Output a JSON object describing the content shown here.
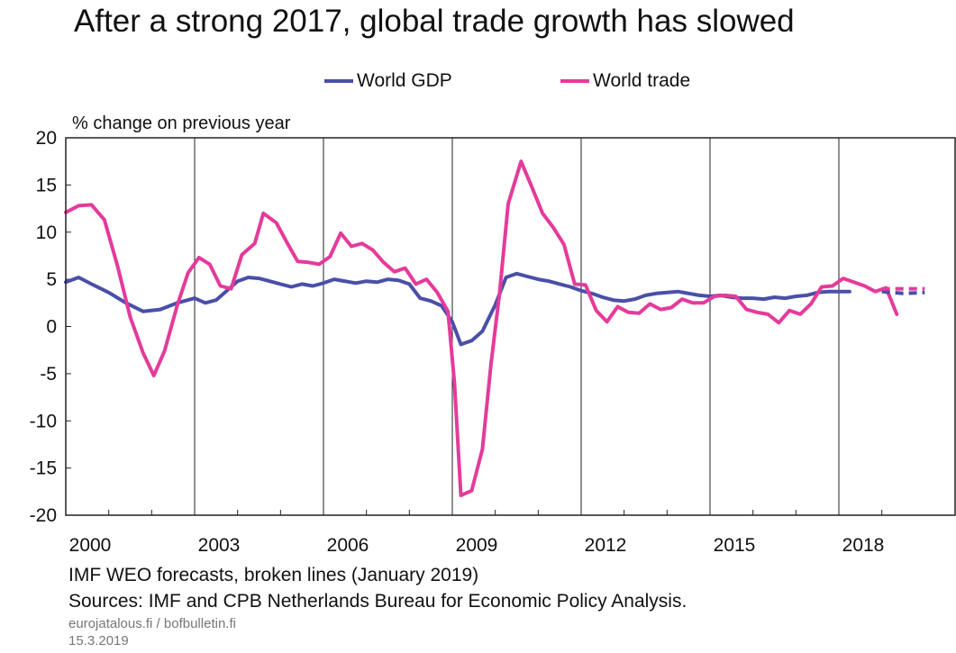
{
  "chart_data": {
    "type": "line",
    "title": "After a strong 2017, global trade growth has slowed",
    "ylabel": "% change on previous year",
    "xlabel": "",
    "xlim": [
      2000,
      2020
    ],
    "ylim": [
      -20,
      20
    ],
    "yticks": [
      20,
      15,
      10,
      5,
      0,
      -5,
      -10,
      -15,
      -20
    ],
    "xticks": [
      2000,
      2003,
      2006,
      2009,
      2012,
      2015,
      2018
    ],
    "grid": "vertical lines at labelled years",
    "legend_position": "top-center",
    "series": [
      {
        "name": "World GDP",
        "color": "#4a4fa8",
        "style": "solid",
        "points": [
          [
            2000.0,
            4.7
          ],
          [
            2000.3,
            5.2
          ],
          [
            2000.6,
            4.5
          ],
          [
            2001.0,
            3.6
          ],
          [
            2001.4,
            2.5
          ],
          [
            2001.8,
            1.6
          ],
          [
            2002.2,
            1.8
          ],
          [
            2002.6,
            2.5
          ],
          [
            2003.0,
            3.0
          ],
          [
            2003.25,
            2.5
          ],
          [
            2003.5,
            2.8
          ],
          [
            2003.75,
            3.8
          ],
          [
            2004.0,
            4.8
          ],
          [
            2004.25,
            5.2
          ],
          [
            2004.5,
            5.1
          ],
          [
            2004.75,
            4.8
          ],
          [
            2005.0,
            4.5
          ],
          [
            2005.25,
            4.2
          ],
          [
            2005.5,
            4.5
          ],
          [
            2005.75,
            4.3
          ],
          [
            2006.0,
            4.6
          ],
          [
            2006.25,
            5.0
          ],
          [
            2006.5,
            4.8
          ],
          [
            2006.75,
            4.6
          ],
          [
            2007.0,
            4.8
          ],
          [
            2007.25,
            4.7
          ],
          [
            2007.5,
            5.0
          ],
          [
            2007.75,
            4.9
          ],
          [
            2008.0,
            4.5
          ],
          [
            2008.25,
            3.0
          ],
          [
            2008.5,
            2.7
          ],
          [
            2008.75,
            2.2
          ],
          [
            2009.0,
            0.5
          ],
          [
            2009.2,
            -1.9
          ],
          [
            2009.45,
            -1.5
          ],
          [
            2009.7,
            -0.5
          ],
          [
            2010.0,
            2.3
          ],
          [
            2010.25,
            5.2
          ],
          [
            2010.5,
            5.6
          ],
          [
            2010.75,
            5.3
          ],
          [
            2011.0,
            5.0
          ],
          [
            2011.25,
            4.8
          ],
          [
            2011.5,
            4.5
          ],
          [
            2011.75,
            4.2
          ],
          [
            2012.0,
            3.8
          ],
          [
            2012.25,
            3.5
          ],
          [
            2012.5,
            3.1
          ],
          [
            2012.75,
            2.8
          ],
          [
            2013.0,
            2.7
          ],
          [
            2013.25,
            2.9
          ],
          [
            2013.5,
            3.3
          ],
          [
            2013.75,
            3.5
          ],
          [
            2014.0,
            3.6
          ],
          [
            2014.25,
            3.7
          ],
          [
            2014.5,
            3.5
          ],
          [
            2014.75,
            3.3
          ],
          [
            2015.0,
            3.2
          ],
          [
            2015.25,
            3.3
          ],
          [
            2015.5,
            3.1
          ],
          [
            2015.75,
            3.0
          ],
          [
            2016.0,
            3.0
          ],
          [
            2016.25,
            2.9
          ],
          [
            2016.5,
            3.1
          ],
          [
            2016.75,
            3.0
          ],
          [
            2017.0,
            3.2
          ],
          [
            2017.25,
            3.3
          ],
          [
            2017.5,
            3.6
          ],
          [
            2017.75,
            3.7
          ],
          [
            2018.0,
            3.7
          ],
          [
            2018.25,
            3.7
          ]
        ]
      },
      {
        "name": "World trade",
        "color": "#e43b9b",
        "style": "solid",
        "points": [
          [
            2000.0,
            12.1
          ],
          [
            2000.3,
            12.8
          ],
          [
            2000.6,
            12.9
          ],
          [
            2000.9,
            11.3
          ],
          [
            2001.2,
            6.5
          ],
          [
            2001.5,
            1.0
          ],
          [
            2001.8,
            -2.8
          ],
          [
            2002.05,
            -5.2
          ],
          [
            2002.3,
            -2.6
          ],
          [
            2002.6,
            2.3
          ],
          [
            2002.85,
            5.7
          ],
          [
            2003.1,
            7.3
          ],
          [
            2003.35,
            6.6
          ],
          [
            2003.6,
            4.3
          ],
          [
            2003.85,
            4.0
          ],
          [
            2004.1,
            7.6
          ],
          [
            2004.4,
            8.8
          ],
          [
            2004.6,
            12.0
          ],
          [
            2004.9,
            11.0
          ],
          [
            2005.15,
            8.9
          ],
          [
            2005.4,
            6.9
          ],
          [
            2005.65,
            6.8
          ],
          [
            2005.9,
            6.6
          ],
          [
            2006.15,
            7.4
          ],
          [
            2006.4,
            9.9
          ],
          [
            2006.65,
            8.5
          ],
          [
            2006.9,
            8.8
          ],
          [
            2007.15,
            8.1
          ],
          [
            2007.4,
            6.8
          ],
          [
            2007.65,
            5.8
          ],
          [
            2007.9,
            6.2
          ],
          [
            2008.15,
            4.5
          ],
          [
            2008.4,
            5.0
          ],
          [
            2008.65,
            3.6
          ],
          [
            2008.9,
            1.6
          ],
          [
            2009.05,
            -6.0
          ],
          [
            2009.2,
            -17.9
          ],
          [
            2009.45,
            -17.4
          ],
          [
            2009.7,
            -13.0
          ],
          [
            2009.9,
            -4.0
          ],
          [
            2010.1,
            3.5
          ],
          [
            2010.3,
            13.0
          ],
          [
            2010.6,
            17.5
          ],
          [
            2010.85,
            14.8
          ],
          [
            2011.1,
            12.0
          ],
          [
            2011.35,
            10.5
          ],
          [
            2011.6,
            8.7
          ],
          [
            2011.85,
            4.5
          ],
          [
            2012.1,
            4.4
          ],
          [
            2012.35,
            1.7
          ],
          [
            2012.6,
            0.5
          ],
          [
            2012.85,
            2.1
          ],
          [
            2013.1,
            1.5
          ],
          [
            2013.35,
            1.4
          ],
          [
            2013.6,
            2.4
          ],
          [
            2013.85,
            1.8
          ],
          [
            2014.1,
            2.0
          ],
          [
            2014.35,
            2.9
          ],
          [
            2014.6,
            2.5
          ],
          [
            2014.85,
            2.5
          ],
          [
            2015.1,
            3.2
          ],
          [
            2015.35,
            3.3
          ],
          [
            2015.6,
            3.2
          ],
          [
            2015.85,
            1.8
          ],
          [
            2016.1,
            1.5
          ],
          [
            2016.35,
            1.3
          ],
          [
            2016.6,
            0.4
          ],
          [
            2016.85,
            1.7
          ],
          [
            2017.1,
            1.3
          ],
          [
            2017.35,
            2.4
          ],
          [
            2017.6,
            4.2
          ],
          [
            2017.85,
            4.3
          ],
          [
            2018.1,
            5.1
          ],
          [
            2018.35,
            4.7
          ],
          [
            2018.6,
            4.3
          ],
          [
            2018.85,
            3.7
          ],
          [
            2019.1,
            4.1
          ],
          [
            2019.35,
            1.3
          ]
        ]
      },
      {
        "name": "World GDP forecast",
        "color": "#4a4fa8",
        "style": "dashed",
        "points": [
          [
            2019.0,
            3.7
          ],
          [
            2019.5,
            3.5
          ],
          [
            2020.0,
            3.6
          ]
        ]
      },
      {
        "name": "World trade forecast",
        "color": "#e43b9b",
        "style": "dashed",
        "points": [
          [
            2019.0,
            4.0
          ],
          [
            2019.5,
            4.0
          ],
          [
            2020.0,
            4.0
          ]
        ]
      }
    ]
  },
  "legend": {
    "gdp_label": "World GDP",
    "trade_label": "World trade"
  },
  "footnotes": {
    "line1": "IMF WEO forecasts, broken lines (January 2019)",
    "line2": "Sources: IMF and CPB Netherlands Bureau for Economic Policy Analysis.",
    "line3": "eurojatalous.fi / bofbulletin.fi",
    "line4": "15.3.2019"
  }
}
